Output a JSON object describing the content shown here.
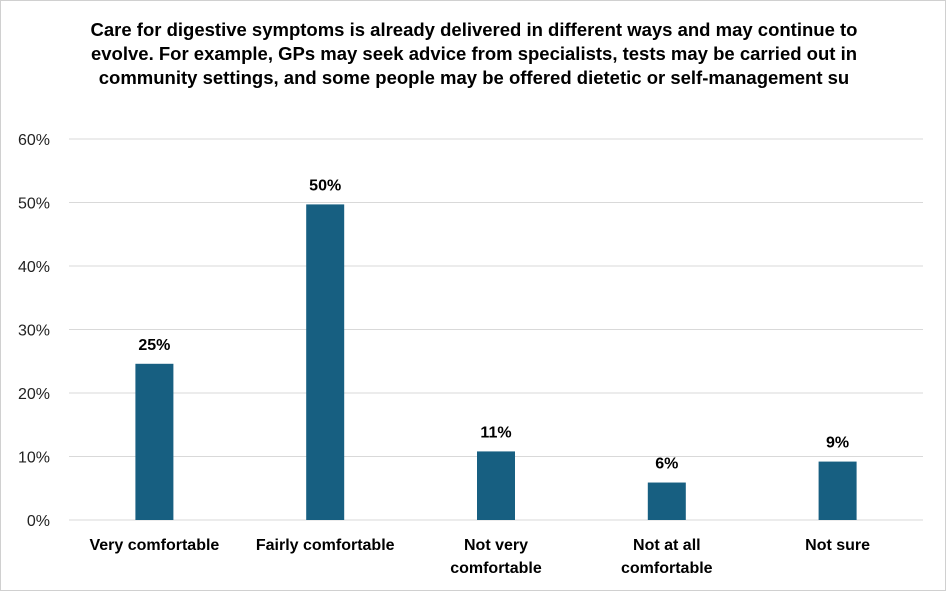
{
  "chart_data": {
    "type": "bar",
    "title": "Care for digestive symptoms is already delivered in different ways and may continue to evolve. For example, GPs may seek advice from specialists, tests may be carried out in community settings, and some people may be offered dietetic or self-management su",
    "categories": [
      "Very comfortable",
      "Fairly comfortable",
      "Not very comfortable",
      "Not at all comfortable",
      "Not sure"
    ],
    "category_lines": [
      [
        "Very comfortable"
      ],
      [
        "Fairly comfortable"
      ],
      [
        "Not very",
        "comfortable"
      ],
      [
        "Not at all",
        "comfortable"
      ],
      [
        "Not sure"
      ]
    ],
    "values": [
      25,
      50,
      11,
      6,
      9
    ],
    "value_values": [
      24.6,
      49.7,
      10.8,
      5.9,
      9.2
    ],
    "data_labels": [
      "25%",
      "50%",
      "11%",
      "6%",
      "9%"
    ],
    "ylim": [
      0,
      60
    ],
    "yticks": [
      0,
      10,
      20,
      30,
      40,
      50,
      60
    ],
    "ytick_labels": [
      "0%",
      "10%",
      "20%",
      "30%",
      "40%",
      "50%",
      "60%"
    ],
    "xlabel": "",
    "ylabel": "",
    "grid": true,
    "legend": "none",
    "bar_color": "#175f81",
    "grid_color": "#d9d9d9"
  }
}
